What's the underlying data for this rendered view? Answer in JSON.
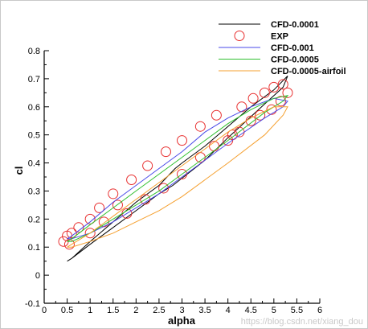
{
  "chart_data": {
    "type": "line",
    "xlabel": "alpha",
    "ylabel": "cl",
    "xlim": [
      0,
      6
    ],
    "ylim": [
      -0.1,
      0.8
    ],
    "xticks": [
      "0",
      "0.5",
      "1",
      "1.5",
      "2",
      "2.5",
      "3",
      "3.5",
      "4",
      "4.5",
      "5",
      "5.5",
      "6"
    ],
    "yticks": [
      "-0.1",
      "0",
      "0.1",
      "0.2",
      "0.3",
      "0.4",
      "0.5",
      "0.6",
      "0.7",
      "0.8"
    ],
    "legend_position": "top-right",
    "grid": false,
    "series": [
      {
        "name": "CFD-0.0001",
        "kind": "line",
        "color": "#000000",
        "points": [
          [
            0.5,
            0.05
          ],
          [
            0.6,
            0.06
          ],
          [
            1.0,
            0.12
          ],
          [
            1.5,
            0.19
          ],
          [
            2.0,
            0.26
          ],
          [
            2.5,
            0.32
          ],
          [
            2.85,
            0.38
          ],
          [
            3.0,
            0.4
          ],
          [
            3.5,
            0.46
          ],
          [
            4.0,
            0.53
          ],
          [
            4.5,
            0.6
          ],
          [
            5.0,
            0.66
          ],
          [
            5.3,
            0.71
          ],
          [
            5.2,
            0.67
          ],
          [
            4.8,
            0.61
          ],
          [
            4.0,
            0.49
          ],
          [
            3.5,
            0.41
          ],
          [
            2.8,
            0.32
          ],
          [
            2.5,
            0.29
          ],
          [
            2.0,
            0.23
          ],
          [
            1.5,
            0.17
          ],
          [
            1.0,
            0.11
          ],
          [
            0.6,
            0.06
          ],
          [
            0.5,
            0.05
          ]
        ]
      },
      {
        "name": "EXP",
        "kind": "marker",
        "color": "#e83030",
        "points": [
          [
            0.42,
            0.12
          ],
          [
            0.5,
            0.14
          ],
          [
            0.55,
            0.11
          ],
          [
            0.6,
            0.15
          ],
          [
            0.75,
            0.17
          ],
          [
            1.0,
            0.15
          ],
          [
            1.0,
            0.2
          ],
          [
            1.2,
            0.24
          ],
          [
            1.3,
            0.19
          ],
          [
            1.5,
            0.29
          ],
          [
            1.6,
            0.25
          ],
          [
            1.8,
            0.22
          ],
          [
            1.9,
            0.34
          ],
          [
            2.2,
            0.27
          ],
          [
            2.25,
            0.39
          ],
          [
            2.6,
            0.31
          ],
          [
            2.65,
            0.44
          ],
          [
            3.0,
            0.36
          ],
          [
            3.0,
            0.48
          ],
          [
            3.4,
            0.42
          ],
          [
            3.4,
            0.53
          ],
          [
            3.7,
            0.46
          ],
          [
            3.75,
            0.57
          ],
          [
            4.0,
            0.48
          ],
          [
            4.1,
            0.5
          ],
          [
            4.25,
            0.51
          ],
          [
            4.3,
            0.6
          ],
          [
            4.5,
            0.55
          ],
          [
            4.55,
            0.63
          ],
          [
            4.7,
            0.57
          ],
          [
            4.8,
            0.65
          ],
          [
            4.95,
            0.59
          ],
          [
            5.0,
            0.67
          ],
          [
            5.15,
            0.62
          ],
          [
            5.2,
            0.68
          ],
          [
            5.3,
            0.65
          ]
        ]
      },
      {
        "name": "CFD-0.001",
        "kind": "line",
        "color": "#4a4ae8",
        "points": [
          [
            0.5,
            0.13
          ],
          [
            0.6,
            0.14
          ],
          [
            1.0,
            0.19
          ],
          [
            1.5,
            0.26
          ],
          [
            2.0,
            0.32
          ],
          [
            2.5,
            0.38
          ],
          [
            3.0,
            0.44
          ],
          [
            3.5,
            0.51
          ],
          [
            4.0,
            0.56
          ],
          [
            4.5,
            0.6
          ],
          [
            5.0,
            0.63
          ],
          [
            5.3,
            0.62
          ],
          [
            5.2,
            0.6
          ],
          [
            4.8,
            0.56
          ],
          [
            4.0,
            0.47
          ],
          [
            3.5,
            0.41
          ],
          [
            3.0,
            0.35
          ],
          [
            2.5,
            0.29
          ],
          [
            2.0,
            0.24
          ],
          [
            1.5,
            0.19
          ],
          [
            1.0,
            0.15
          ],
          [
            0.6,
            0.13
          ],
          [
            0.5,
            0.13
          ]
        ]
      },
      {
        "name": "CFD-0.0005",
        "kind": "line",
        "color": "#30c030",
        "points": [
          [
            0.5,
            0.12
          ],
          [
            0.6,
            0.13
          ],
          [
            1.0,
            0.18
          ],
          [
            1.5,
            0.24
          ],
          [
            2.0,
            0.3
          ],
          [
            2.5,
            0.36
          ],
          [
            3.0,
            0.42
          ],
          [
            3.5,
            0.48
          ],
          [
            4.0,
            0.54
          ],
          [
            4.5,
            0.59
          ],
          [
            5.0,
            0.63
          ],
          [
            5.3,
            0.64
          ],
          [
            5.2,
            0.62
          ],
          [
            4.8,
            0.58
          ],
          [
            4.0,
            0.48
          ],
          [
            3.5,
            0.42
          ],
          [
            3.0,
            0.36
          ],
          [
            2.5,
            0.3
          ],
          [
            2.0,
            0.25
          ],
          [
            1.5,
            0.2
          ],
          [
            1.0,
            0.15
          ],
          [
            0.6,
            0.12
          ],
          [
            0.5,
            0.12
          ]
        ]
      },
      {
        "name": "CFD-0.0005-airfoil",
        "kind": "line",
        "color": "#f5a030",
        "points": [
          [
            0.5,
            0.1
          ],
          [
            0.6,
            0.11
          ],
          [
            1.0,
            0.15
          ],
          [
            1.5,
            0.21
          ],
          [
            2.0,
            0.27
          ],
          [
            2.5,
            0.33
          ],
          [
            3.0,
            0.39
          ],
          [
            3.5,
            0.45
          ],
          [
            4.0,
            0.51
          ],
          [
            4.5,
            0.56
          ],
          [
            5.0,
            0.6
          ],
          [
            5.3,
            0.6
          ],
          [
            5.2,
            0.57
          ],
          [
            4.8,
            0.5
          ],
          [
            4.0,
            0.4
          ],
          [
            3.5,
            0.34
          ],
          [
            3.0,
            0.28
          ],
          [
            2.5,
            0.23
          ],
          [
            2.0,
            0.19
          ],
          [
            1.5,
            0.15
          ],
          [
            1.0,
            0.12
          ],
          [
            0.6,
            0.1
          ],
          [
            0.5,
            0.1
          ]
        ]
      }
    ]
  },
  "watermark": "https://blog.csdn.net/xiang_dou"
}
